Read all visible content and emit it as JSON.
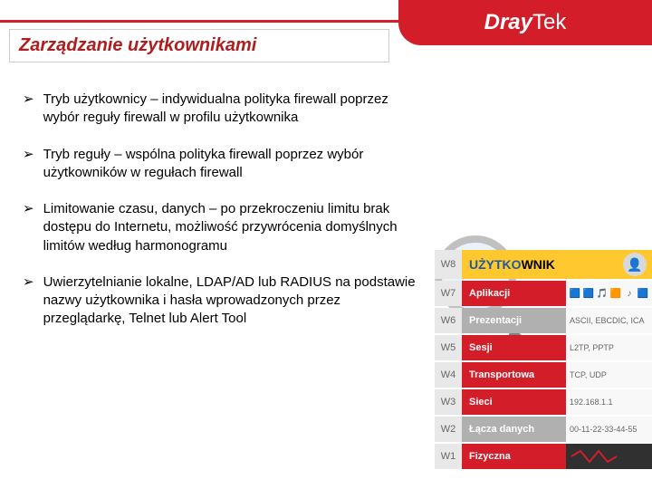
{
  "colors": {
    "brand_red": "#d31e2a",
    "title_red": "#b01d1d",
    "user_yellow": "#ffc82e",
    "label_gray": "#e8e8e8"
  },
  "logo": {
    "part1": "Dray",
    "part2": "Tek"
  },
  "title": "Zarządzanie użytkownikami",
  "bullets": [
    "Tryb użytkownicy – indywidualna polityka firewall poprzez wybór reguły firewall w profilu użytkownika",
    "Tryb reguły – wspólna polityka firewall poprzez wybór użytkowników w regułach firewall",
    "Limitowanie czasu, danych – po przekroczeniu limitu brak dostępu do Internetu, możliwość przywrócenia domyślnych limitów według harmonogramu",
    "Uwierzytelnianie lokalne, LDAP/AD lub RADIUS na podstawie nazwy użytkownika i hasła wprowadzonych przez przeglądarkę, Telnet lub Alert Tool"
  ],
  "user_row": {
    "label": "W8",
    "name_blue": "UŻYTKO",
    "name_black": "WNIK"
  },
  "layers": [
    {
      "label": "W7",
      "name": "Aplikacji",
      "color": "#d31e2a",
      "detail_type": "icons"
    },
    {
      "label": "W6",
      "name": "Prezentacji",
      "color": "#b0b0b0",
      "detail": "ASCII, EBCDIC, ICA"
    },
    {
      "label": "W5",
      "name": "Sesji",
      "color": "#d31e2a",
      "detail": "L2TP, PPTP"
    },
    {
      "label": "W4",
      "name": "Transportowa",
      "color": "#d31e2a",
      "detail": "TCP, UDP"
    },
    {
      "label": "W3",
      "name": "Sieci",
      "color": "#d31e2a",
      "detail": "192.168.1.1"
    },
    {
      "label": "W2",
      "name": "Łącza danych",
      "color": "#b0b0b0",
      "detail": "00-11-22-33-44-55"
    },
    {
      "label": "W1",
      "name": "Fizyczna",
      "color": "#d31e2a",
      "detail_type": "wave"
    }
  ]
}
